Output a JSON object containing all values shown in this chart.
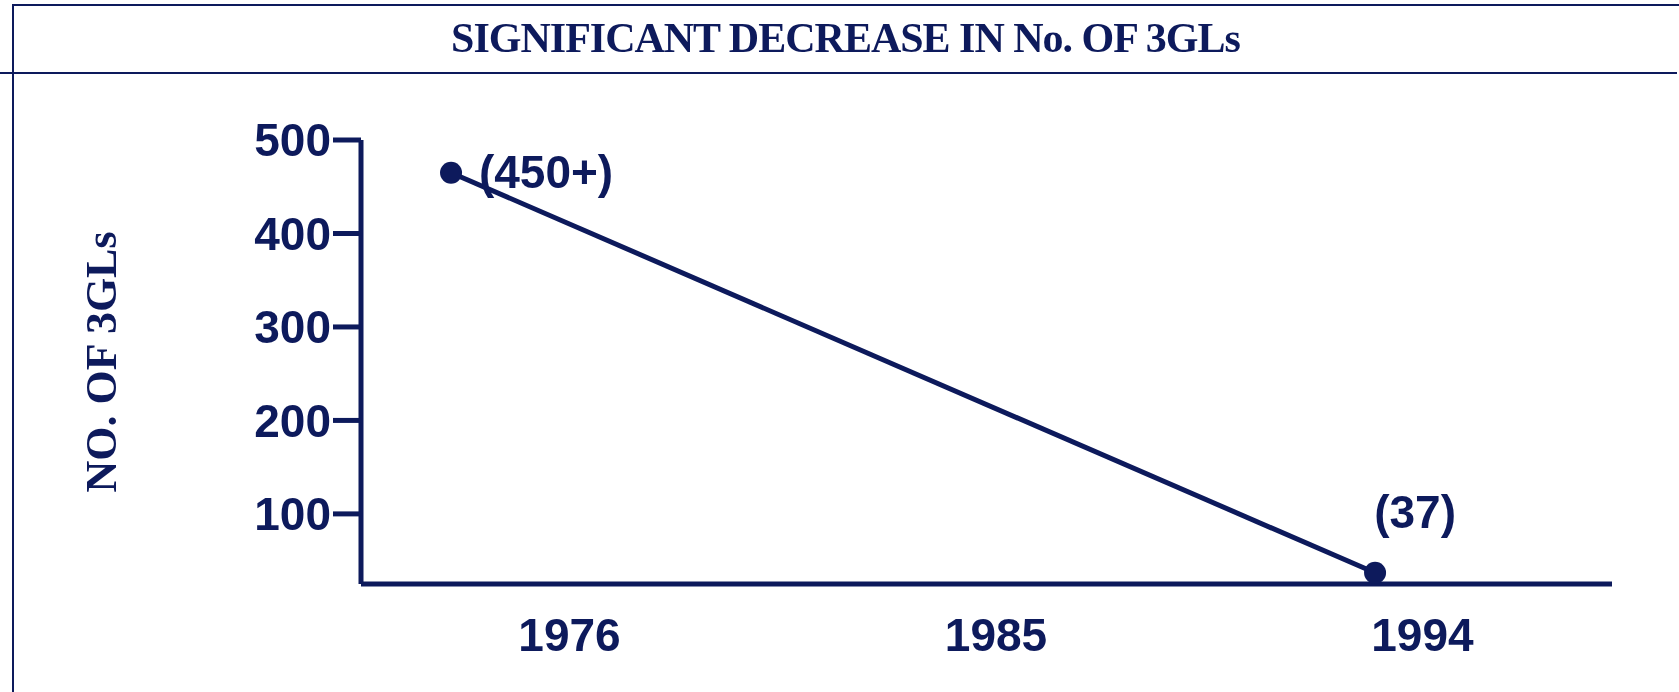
{
  "chart_data": {
    "type": "line",
    "title": "SIGNIFICANT DECREASE IN No. OF 3GLs",
    "ylabel": "NO. OF 3GLs",
    "x": [
      1973.5,
      1993
    ],
    "series": [
      {
        "color": "#0d1a5c",
        "values": [
          465,
          37
        ],
        "value_labels": [
          "(450+)",
          "(37)"
        ]
      }
    ],
    "xlim": [
      1971.6,
      1998
    ],
    "xticks": [
      1976,
      1985,
      1994
    ],
    "ylim": [
      25,
      500
    ],
    "yticks": [
      100,
      200,
      300,
      400,
      500
    ],
    "marker": "circle",
    "line_style": "solid"
  }
}
